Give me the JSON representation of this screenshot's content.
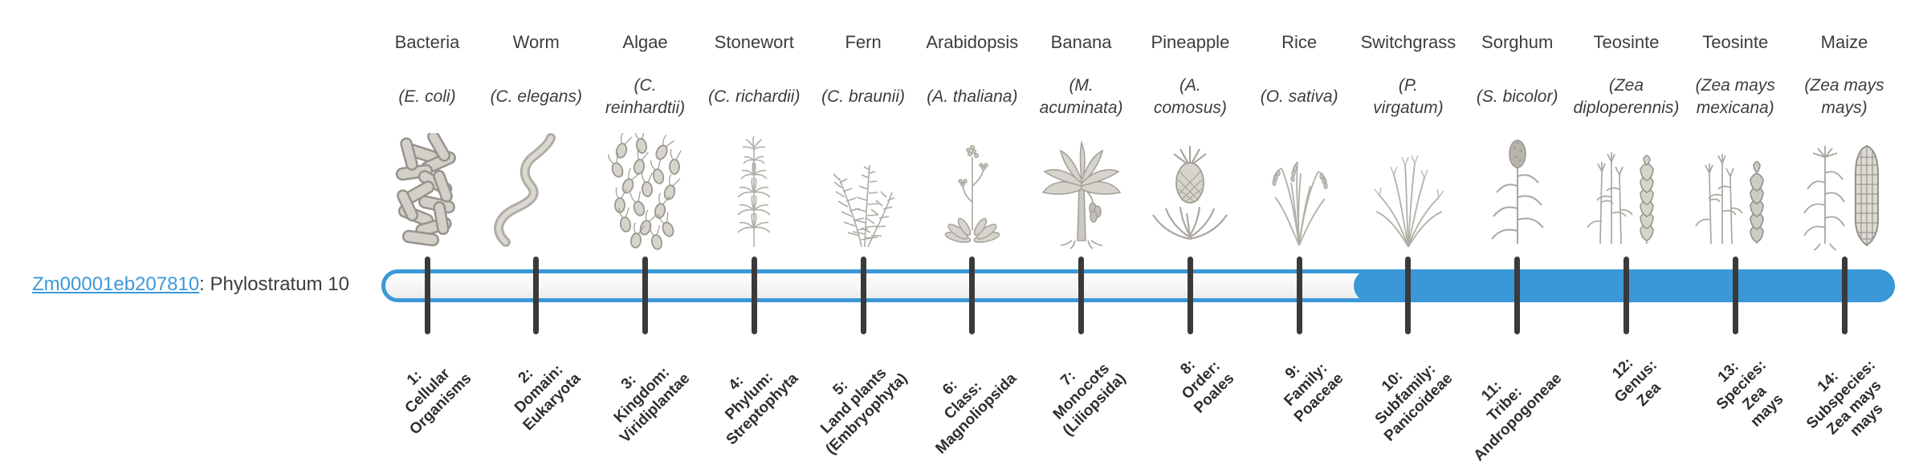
{
  "colors": {
    "accent_blue": "#3b98d8",
    "tick": "#3a3a3c",
    "label_text": "#3d3d3d",
    "stage_text": "#2e2e2e"
  },
  "gene": {
    "id": "Zm00001eb207810",
    "phylostratum_text": ": Phylostratum 10"
  },
  "organisms": [
    {
      "name": "Bacteria",
      "sci": "(E. coli)",
      "icon": "bacteria-illustration",
      "stage": "1:\nCellular\nOrganisms"
    },
    {
      "name": "Worm",
      "sci": "(C. elegans)",
      "icon": "worm-illustration",
      "stage": "2:\nDomain:\nEukaryota"
    },
    {
      "name": "Algae",
      "sci": "(C.\nreinhardtii)",
      "icon": "algae-illustration",
      "stage": "3:\nKingdom:\nViridiplantae"
    },
    {
      "name": "Stonewort",
      "sci": "(C. richardii)",
      "icon": "stonewort-illustration",
      "stage": "4:\nPhylum:\nStreptophyta"
    },
    {
      "name": "Fern",
      "sci": "(C. braunii)",
      "icon": "fern-illustration",
      "stage": "5:\nLand plants\n(Embryophyta)"
    },
    {
      "name": "Arabidopsis",
      "sci": "(A. thaliana)",
      "icon": "arabidopsis-illustration",
      "stage": "6:\nClass:\nMagnoliopsida"
    },
    {
      "name": "Banana",
      "sci": "(M.\nacuminata)",
      "icon": "banana-illustration",
      "stage": "7:\nMonocots\n(Liliopsida)"
    },
    {
      "name": "Pineapple",
      "sci": "(A.\ncomosus)",
      "icon": "pineapple-illustration",
      "stage": "8:\nOrder:\nPoales"
    },
    {
      "name": "Rice",
      "sci": "(O. sativa)",
      "icon": "rice-illustration",
      "stage": "9:\nFamily:\nPoaceae"
    },
    {
      "name": "Switchgrass",
      "sci": "(P.\nvirgatum)",
      "icon": "switchgrass-illustration",
      "stage": "10:\nSubfamily:\nPanicoideae"
    },
    {
      "name": "Sorghum",
      "sci": "(S. bicolor)",
      "icon": "sorghum-illustration",
      "stage": "11:\nTribe:\nAndropogoneae"
    },
    {
      "name": "Teosinte",
      "sci": "(Zea\ndiploperennis)",
      "icon": "teosinte-diploperennis-illustration",
      "stage": "12:\nGenus:\nZea"
    },
    {
      "name": "Teosinte",
      "sci": "(Zea mays\nmexicana)",
      "icon": "teosinte-mexicana-illustration",
      "stage": "13:\nSpecies:\nZea\nmays"
    },
    {
      "name": "Maize",
      "sci": "(Zea mays\nmays)",
      "icon": "maize-illustration",
      "stage": "14:\nSubspecies:\nZea mays\nmays"
    }
  ],
  "chart_data": {
    "type": "bar",
    "title": "Zm00001eb207810: Phylostratum 10",
    "categories": [
      "1: Cellular Organisms",
      "2: Domain: Eukaryota",
      "3: Kingdom: Viridiplantae",
      "4: Phylum: Streptophyta",
      "5: Land plants (Embryophyta)",
      "6: Class: Magnoliopsida",
      "7: Monocots (Liliopsida)",
      "8: Order: Poales",
      "9: Family: Poaceae",
      "10: Subfamily: Panicoideae",
      "11: Tribe: Andropogoneae",
      "12: Genus: Zea",
      "13: Species: Zea mays",
      "14: Subspecies: Zea mays mays"
    ],
    "organism_labels": [
      "Bacteria (E. coli)",
      "Worm (C. elegans)",
      "Algae (C. reinhardtii)",
      "Stonewort (C. richardii)",
      "Fern (C. braunii)",
      "Arabidopsis (A. thaliana)",
      "Banana (M. acuminata)",
      "Pineapple (A. comosus)",
      "Rice (O. sativa)",
      "Switchgrass (P. virgatum)",
      "Sorghum (S. bicolor)",
      "Teosinte (Zea diploperennis)",
      "Teosinte (Zea mays mexicana)",
      "Maize (Zea mays mays)"
    ],
    "phylostratum": 10,
    "highlighted_stage_range": [
      10,
      14
    ],
    "xlabel": "",
    "ylabel": "",
    "legend_position": "none",
    "grid": false
  }
}
